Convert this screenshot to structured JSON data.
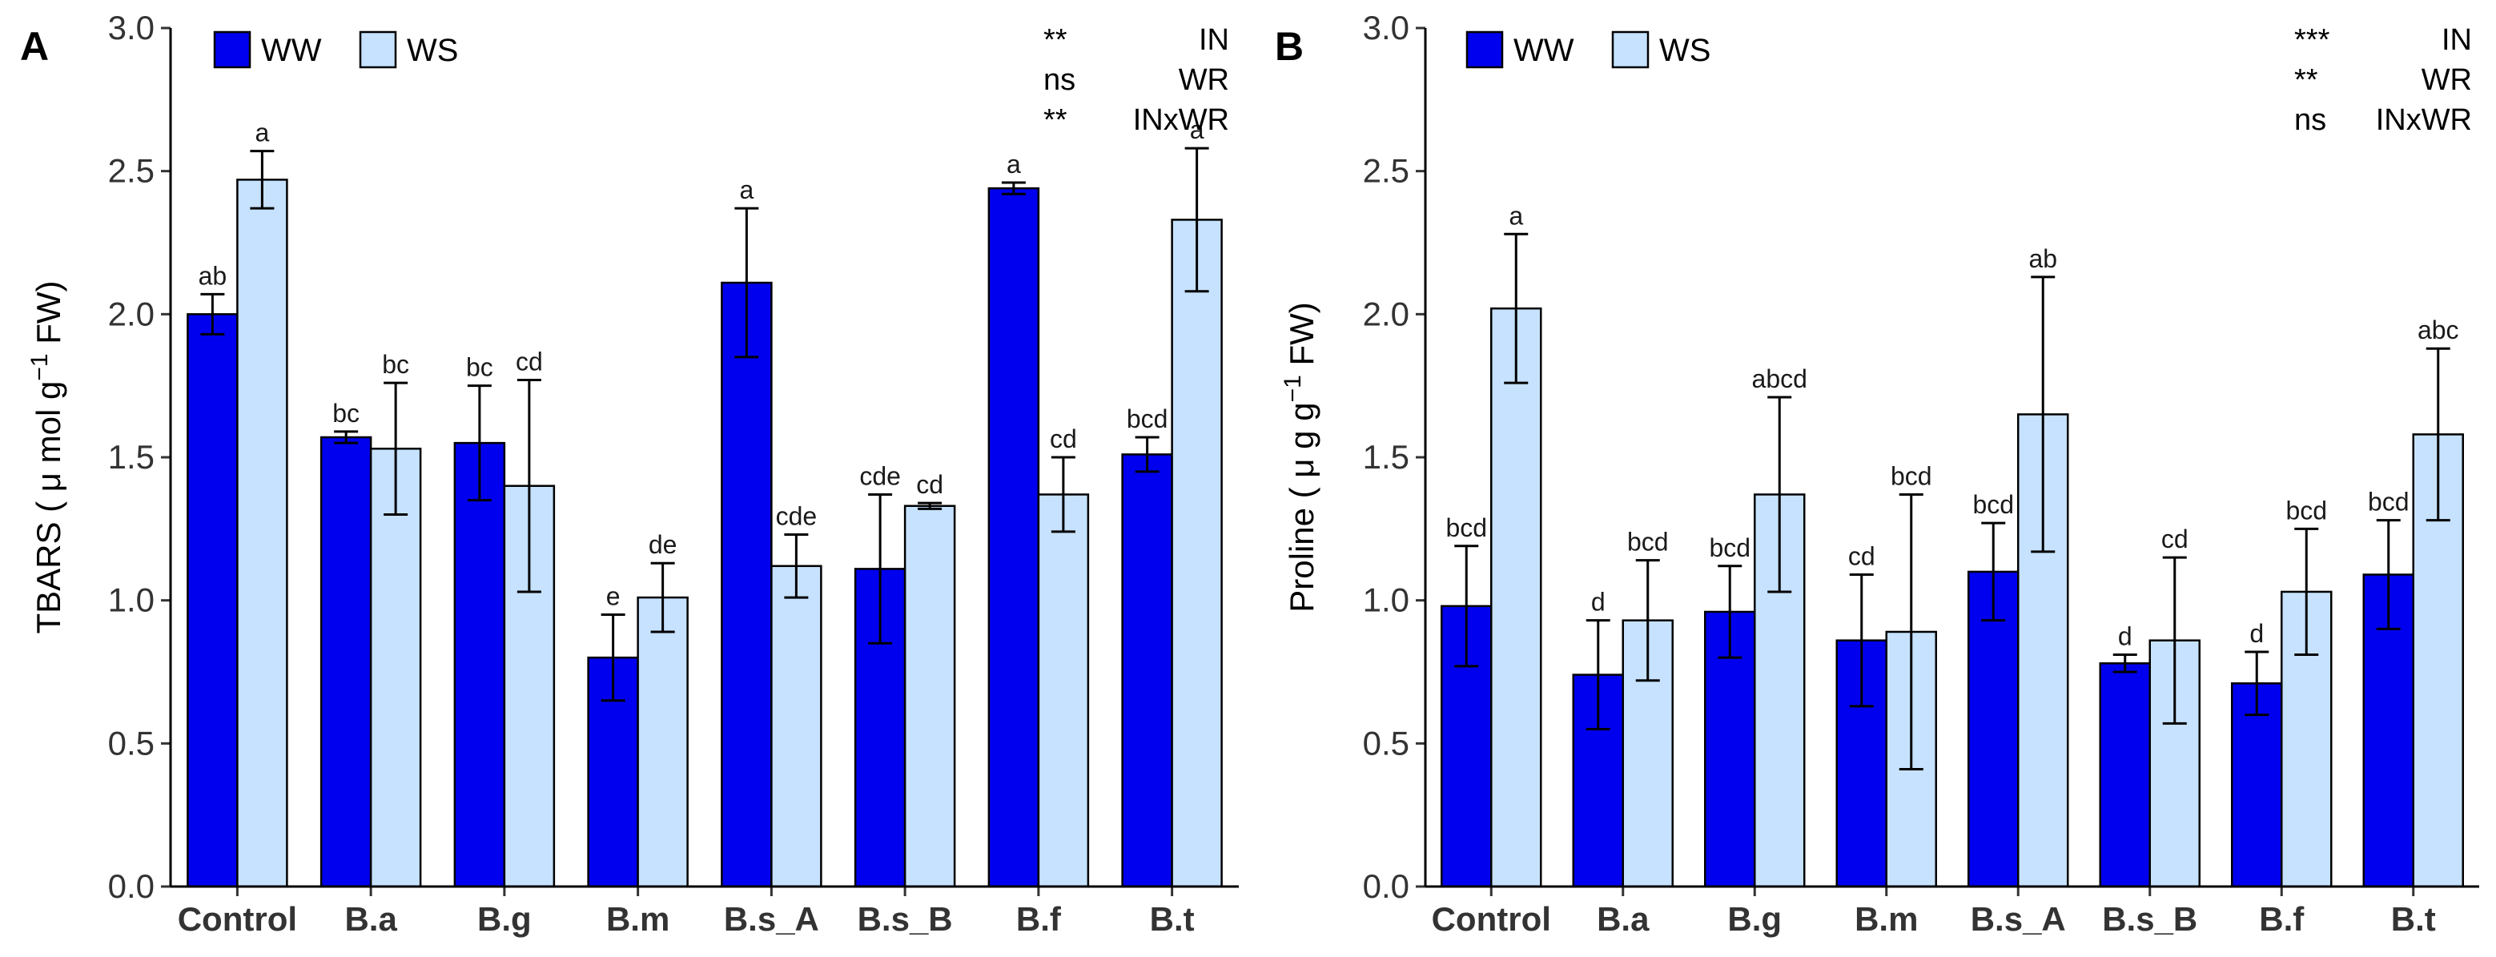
{
  "figure": {
    "colors": {
      "WW": "#0000ee",
      "WS": "#c6e2ff",
      "stroke": "#000000"
    },
    "legend_labels": [
      "WW",
      "WS"
    ]
  },
  "chart_data": [
    {
      "type": "bar",
      "panel": "A",
      "title": "",
      "xlabel": "",
      "ylabel_main": "TBARS ( μ mol g",
      "ylabel_exp": "−1",
      "ylabel_end": " FW)",
      "ylim": [
        0,
        3.0
      ],
      "yticks": [
        "0.0",
        "0.5",
        "1.0",
        "1.5",
        "2.0",
        "2.5",
        "3.0"
      ],
      "categories": [
        "Control",
        "B.a",
        "B.g",
        "B.m",
        "B.s_A",
        "B.s_B",
        "B.f",
        "B.t"
      ],
      "series": [
        {
          "name": "WW",
          "values": [
            2.0,
            1.57,
            1.55,
            0.8,
            2.11,
            1.11,
            2.44,
            1.51
          ],
          "errors": [
            0.07,
            0.02,
            0.2,
            0.15,
            0.26,
            0.26,
            0.02,
            0.06
          ],
          "labels": [
            "ab",
            "bc",
            "bc",
            "e",
            "a",
            "cde",
            "a",
            "bcd"
          ]
        },
        {
          "name": "WS",
          "values": [
            2.47,
            1.53,
            1.4,
            1.01,
            1.12,
            1.33,
            1.37,
            2.33
          ],
          "errors": [
            0.1,
            0.23,
            0.37,
            0.12,
            0.11,
            0.01,
            0.13,
            0.25
          ],
          "labels": [
            "a",
            "bc",
            "cd",
            "de",
            "cde",
            "cd",
            "cd",
            "a"
          ]
        }
      ],
      "stats": [
        {
          "sig": "**",
          "term": "IN"
        },
        {
          "sig": "ns",
          "term": "WR"
        },
        {
          "sig": "**",
          "term": "INxWR"
        }
      ],
      "legend": "top-left"
    },
    {
      "type": "bar",
      "panel": "B",
      "title": "",
      "xlabel": "",
      "ylabel_main": "Proline ( μ g g",
      "ylabel_exp": "−1",
      "ylabel_end": " FW)",
      "ylim": [
        0,
        3.0
      ],
      "yticks": [
        "0.0",
        "0.5",
        "1.0",
        "1.5",
        "2.0",
        "2.5",
        "3.0"
      ],
      "categories": [
        "Control",
        "B.a",
        "B.g",
        "B.m",
        "B.s_A",
        "B.s_B",
        "B.f",
        "B.t"
      ],
      "series": [
        {
          "name": "WW",
          "values": [
            0.98,
            0.74,
            0.96,
            0.86,
            1.1,
            0.78,
            0.71,
            1.09
          ],
          "errors": [
            0.21,
            0.19,
            0.16,
            0.23,
            0.17,
            0.03,
            0.11,
            0.19
          ],
          "labels": [
            "bcd",
            "d",
            "bcd",
            "cd",
            "bcd",
            "d",
            "d",
            "bcd"
          ]
        },
        {
          "name": "WS",
          "values": [
            2.02,
            0.93,
            1.37,
            0.89,
            1.65,
            0.86,
            1.03,
            1.58
          ],
          "errors": [
            0.26,
            0.21,
            0.34,
            0.48,
            0.48,
            0.29,
            0.22,
            0.3
          ],
          "labels": [
            "a",
            "bcd",
            "abcd",
            "bcd",
            "ab",
            "cd",
            "bcd",
            "abc"
          ]
        }
      ],
      "stats": [
        {
          "sig": "***",
          "term": "IN"
        },
        {
          "sig": "**",
          "term": "WR"
        },
        {
          "sig": "ns",
          "term": "INxWR"
        }
      ],
      "legend": "top-left"
    }
  ]
}
